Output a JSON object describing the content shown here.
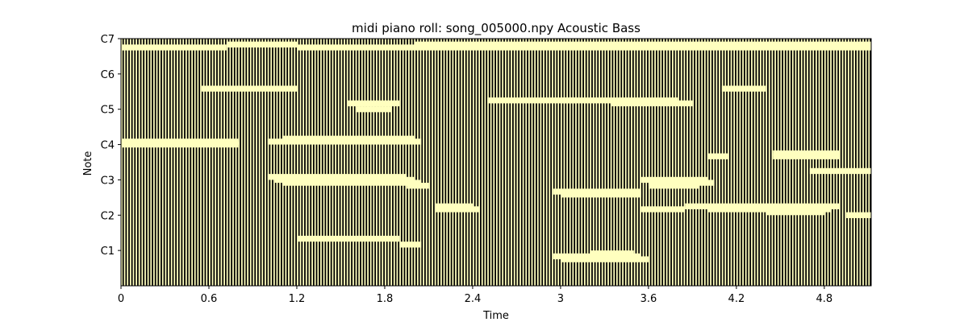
{
  "chart_data": {
    "type": "heatmap",
    "title": "midi piano roll: song_005000.npy Acoustic Bass",
    "xlabel": "Time",
    "ylabel": "Note",
    "xlim": [
      0,
      5.12
    ],
    "ylim": [
      12,
      96
    ],
    "x_ticks": [
      {
        "value": 0,
        "label": "0"
      },
      {
        "value": 0.6,
        "label": "0.6"
      },
      {
        "value": 1.2,
        "label": "1.2"
      },
      {
        "value": 1.8,
        "label": "1.8"
      },
      {
        "value": 2.4,
        "label": "2.4"
      },
      {
        "value": 3.0,
        "label": "3"
      },
      {
        "value": 3.6,
        "label": "3.6"
      },
      {
        "value": 4.2,
        "label": "4.2"
      },
      {
        "value": 4.8,
        "label": "4.8"
      }
    ],
    "y_ticks": [
      {
        "value": 24,
        "label": "C1"
      },
      {
        "value": 36,
        "label": "C2"
      },
      {
        "value": 48,
        "label": "C3"
      },
      {
        "value": 60,
        "label": "C4"
      },
      {
        "value": 72,
        "label": "C5"
      },
      {
        "value": 84,
        "label": "C6"
      },
      {
        "value": 96,
        "label": "C7"
      }
    ],
    "column_step": 0.02,
    "colors": {
      "background": "#000000",
      "active": "#ffffbf"
    },
    "grid": false,
    "sustained_notes": [
      {
        "note": 93,
        "start": 0.0,
        "end": 0.72
      },
      {
        "note": 94,
        "start": 0.72,
        "end": 1.2
      },
      {
        "note": 93,
        "start": 1.2,
        "end": 5.12
      },
      {
        "note": 94,
        "start": 2.0,
        "end": 5.12
      },
      {
        "note": 79,
        "start": 0.55,
        "end": 1.2
      },
      {
        "note": 74,
        "start": 1.55,
        "end": 1.9
      },
      {
        "note": 72,
        "start": 1.6,
        "end": 1.85
      },
      {
        "note": 75,
        "start": 2.5,
        "end": 3.1
      },
      {
        "note": 75,
        "start": 3.0,
        "end": 3.8
      },
      {
        "note": 74,
        "start": 3.35,
        "end": 3.9
      },
      {
        "note": 79,
        "start": 4.1,
        "end": 4.4
      },
      {
        "note": 61,
        "start": 0.0,
        "end": 0.8
      },
      {
        "note": 60,
        "start": 0.0,
        "end": 0.8
      },
      {
        "note": 61,
        "start": 1.0,
        "end": 2.05
      },
      {
        "note": 62,
        "start": 1.1,
        "end": 2.0
      },
      {
        "note": 56,
        "start": 4.0,
        "end": 4.15
      },
      {
        "note": 57,
        "start": 4.45,
        "end": 4.9
      },
      {
        "note": 56,
        "start": 4.45,
        "end": 4.9
      },
      {
        "note": 51,
        "start": 4.7,
        "end": 5.12
      },
      {
        "note": 49,
        "start": 1.0,
        "end": 1.95
      },
      {
        "note": 48,
        "start": 1.05,
        "end": 2.0
      },
      {
        "note": 47,
        "start": 1.1,
        "end": 2.05
      },
      {
        "note": 46,
        "start": 1.95,
        "end": 2.1
      },
      {
        "note": 48,
        "start": 3.55,
        "end": 4.0
      },
      {
        "note": 47,
        "start": 3.6,
        "end": 4.05
      },
      {
        "note": 46,
        "start": 3.6,
        "end": 3.95
      },
      {
        "note": 44,
        "start": 2.95,
        "end": 3.55
      },
      {
        "note": 43,
        "start": 3.0,
        "end": 3.55
      },
      {
        "note": 39,
        "start": 2.15,
        "end": 2.4
      },
      {
        "note": 38,
        "start": 2.15,
        "end": 2.45
      },
      {
        "note": 38,
        "start": 3.55,
        "end": 3.85
      },
      {
        "note": 39,
        "start": 3.85,
        "end": 4.9
      },
      {
        "note": 38,
        "start": 4.0,
        "end": 4.85
      },
      {
        "note": 37,
        "start": 4.4,
        "end": 4.8
      },
      {
        "note": 36,
        "start": 4.95,
        "end": 5.12
      },
      {
        "note": 28,
        "start": 1.2,
        "end": 1.9
      },
      {
        "note": 26,
        "start": 1.9,
        "end": 2.05
      },
      {
        "note": 23,
        "start": 3.2,
        "end": 3.5
      },
      {
        "note": 22,
        "start": 2.95,
        "end": 3.55
      },
      {
        "note": 21,
        "start": 3.0,
        "end": 3.6
      }
    ]
  }
}
